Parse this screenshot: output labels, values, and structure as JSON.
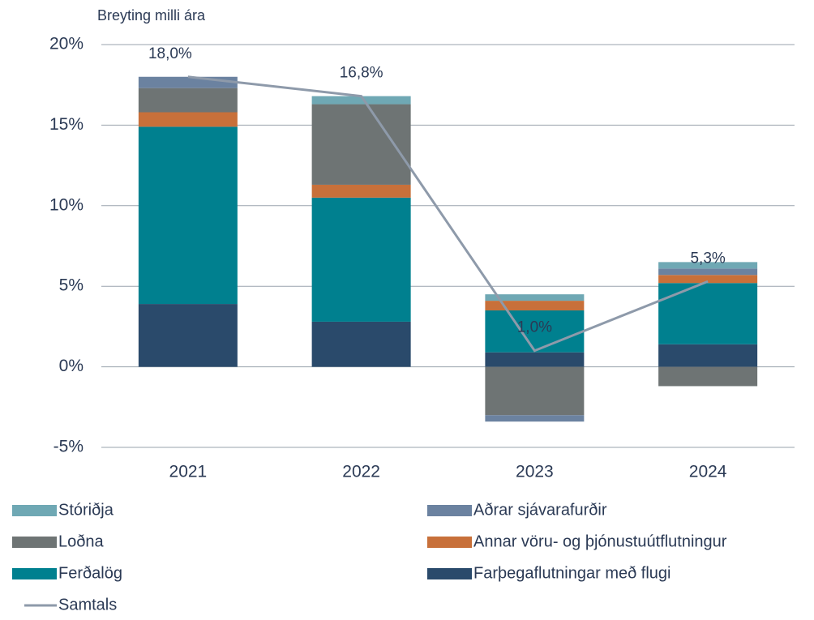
{
  "chart_data": {
    "type": "bar",
    "ylabel": "Breyting milli ára",
    "categories": [
      "2021",
      "2022",
      "2023",
      "2024"
    ],
    "ylim": [
      -5,
      20
    ],
    "yticks": [
      {
        "value": -5,
        "label": "-5%"
      },
      {
        "value": 0,
        "label": "0%"
      },
      {
        "value": 5,
        "label": "5%"
      },
      {
        "value": 10,
        "label": "10%"
      },
      {
        "value": 15,
        "label": "15%"
      },
      {
        "value": 20,
        "label": "20%"
      }
    ],
    "grid": true,
    "series": [
      {
        "name": "Stóriðja",
        "color": "#6fa8b4",
        "values": [
          0,
          0.5,
          0.4,
          0.4
        ]
      },
      {
        "name": "Aðrar sjávarafurðir",
        "color": "#6b82a0",
        "values": [
          0.7,
          0,
          -0.4,
          0.4
        ]
      },
      {
        "name": "Loðna",
        "color": "#6e7474",
        "values": [
          1.5,
          5.0,
          -3.0,
          -1.2
        ]
      },
      {
        "name": "Annar vöru- og þjónustuútflutningur",
        "color": "#c8703a",
        "values": [
          0.9,
          0.8,
          0.6,
          0.5
        ]
      },
      {
        "name": "Ferðalög",
        "color": "#00808f",
        "values": [
          11.0,
          7.7,
          2.6,
          3.8
        ]
      },
      {
        "name": "Farþegaflutningar með flugi",
        "color": "#2a4a6b",
        "values": [
          3.9,
          2.8,
          0.9,
          1.4
        ]
      },
      {
        "name": "Samtals",
        "color": "#8e9aaa",
        "type": "line",
        "values": [
          18.0,
          16.8,
          1.0,
          5.3
        ],
        "value_labels": [
          "18,0%",
          "16,8%",
          "1,0%",
          "5,3%"
        ]
      }
    ]
  }
}
